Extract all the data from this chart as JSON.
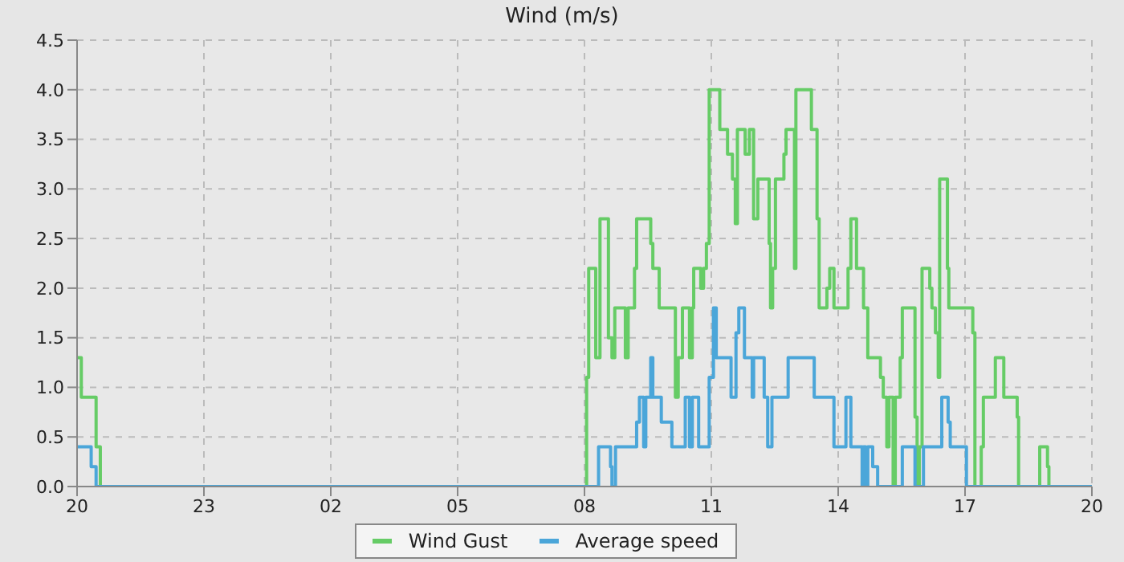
{
  "chart_data": {
    "type": "step",
    "title": "Wind (m/s)",
    "xlim": [
      "--01-01T20:00",
      "--01-02T20:00"
    ],
    "xticks": [
      {
        "value": "--01-01T20:00",
        "label": "20"
      },
      {
        "value": "--01-01T23:00",
        "label": "23"
      },
      {
        "value": "--01-02T02:00",
        "label": "02"
      },
      {
        "value": "--01-02T05:00",
        "label": "05"
      },
      {
        "value": "--01-02T08:00",
        "label": "08"
      },
      {
        "value": "--01-02T11:00",
        "label": "11"
      },
      {
        "value": "--01-02T14:00",
        "label": "14"
      },
      {
        "value": "--01-02T17:00",
        "label": "17"
      },
      {
        "value": "--01-02T20:00",
        "label": "20"
      }
    ],
    "ylim": [
      0,
      4.5
    ],
    "yticks": [
      {
        "value": 0,
        "label": "0.0"
      },
      {
        "value": 0.5,
        "label": "0.5"
      },
      {
        "value": 1,
        "label": "1.0"
      },
      {
        "value": 1.5,
        "label": "1.5"
      },
      {
        "value": 2,
        "label": "2.0"
      },
      {
        "value": 2.5,
        "label": "2.5"
      },
      {
        "value": 3,
        "label": "3.0"
      },
      {
        "value": 3.5,
        "label": "3.5"
      },
      {
        "value": 4,
        "label": "4.0"
      },
      {
        "value": 4.5,
        "label": "4.5"
      }
    ],
    "grid": true,
    "legend": "bottom",
    "marker": "none",
    "line_style": "solid",
    "series": [
      {
        "name": "Wind Gust",
        "color": "#66cc66",
        "x": [
          "--01-01T20:00",
          "--01-01T20:06",
          "--01-01T20:27",
          "--01-01T20:33",
          "--01-02T08:03",
          "--01-02T08:06",
          "--01-02T08:16",
          "--01-02T08:22",
          "--01-02T08:34",
          "--01-02T08:39",
          "--01-02T08:43",
          "--01-02T08:58",
          "--01-02T09:02",
          "--01-02T09:11",
          "--01-02T09:14",
          "--01-02T09:34",
          "--01-02T09:37",
          "--01-02T09:46",
          "--01-02T10:09",
          "--01-02T10:13",
          "--01-02T10:19",
          "--01-02T10:29",
          "--01-02T10:33",
          "--01-02T10:35",
          "--01-02T10:45",
          "--01-02T10:49",
          "--01-02T10:53",
          "--01-02T10:57",
          "--01-02T11:12",
          "--01-02T11:23",
          "--01-02T11:30",
          "--01-02T11:34",
          "--01-02T11:37",
          "--01-02T11:48",
          "--01-02T11:54",
          "--01-02T12:00",
          "--01-02T12:06",
          "--01-02T12:22",
          "--01-02T12:24",
          "--01-02T12:27",
          "--01-02T12:31",
          "--01-02T12:43",
          "--01-02T12:46",
          "--01-02T12:58",
          "--01-02T13:00",
          "--01-02T13:02",
          "--01-02T13:22",
          "--01-02T13:30",
          "--01-02T13:33",
          "--01-02T13:44",
          "--01-02T13:48",
          "--01-02T13:54",
          "--01-02T13:57",
          "--01-02T14:14",
          "--01-02T14:18",
          "--01-02T14:26",
          "--01-02T14:30",
          "--01-02T14:36",
          "--01-02T14:42",
          "--01-02T15:00",
          "--01-02T15:04",
          "--01-02T15:09",
          "--01-02T15:12",
          "--01-02T15:18",
          "--01-02T15:21",
          "--01-02T15:28",
          "--01-02T15:31",
          "--01-02T15:49",
          "--01-02T15:52",
          "--01-02T15:55",
          "--01-02T15:59",
          "--01-02T16:10",
          "--01-02T16:13",
          "--01-02T16:18",
          "--01-02T16:22",
          "--01-02T16:24",
          "--01-02T16:35",
          "--01-02T16:37",
          "--01-02T17:11",
          "--01-02T17:14",
          "--01-02T17:23",
          "--01-02T17:26",
          "--01-02T17:43",
          "--01-02T17:55",
          "--01-02T18:14",
          "--01-02T18:16",
          "--01-02T18:46",
          "--01-02T18:57",
          "--01-02T18:59",
          "--01-02T20:00"
        ],
        "values": [
          1.3,
          0.9,
          0.4,
          0,
          1.1,
          2.2,
          1.3,
          2.7,
          1.5,
          1.3,
          1.8,
          1.3,
          1.8,
          2.2,
          2.7,
          2.45,
          2.2,
          1.8,
          0.9,
          1.3,
          1.8,
          1.3,
          1.8,
          2.2,
          2.0,
          2.2,
          2.45,
          4.0,
          3.6,
          3.35,
          3.1,
          2.65,
          3.6,
          3.35,
          3.6,
          2.7,
          3.1,
          2.45,
          1.8,
          2.2,
          3.1,
          3.35,
          3.6,
          2.2,
          4.0,
          4.0,
          3.6,
          2.7,
          1.8,
          2.0,
          2.2,
          1.8,
          1.8,
          2.2,
          2.7,
          2.2,
          2.2,
          1.8,
          1.3,
          1.1,
          0.9,
          0.4,
          0.9,
          0,
          0.9,
          1.3,
          1.8,
          0.7,
          0,
          0.4,
          2.2,
          2.0,
          1.8,
          1.55,
          1.1,
          3.1,
          2.2,
          1.8,
          1.55,
          0,
          0.4,
          0.9,
          1.3,
          0.9,
          0.7,
          0,
          0.4,
          0.2,
          0,
          0
        ]
      },
      {
        "name": "Average speed",
        "color": "#4ba6d9",
        "x": [
          "--01-01T20:00",
          "--01-01T20:20",
          "--01-01T20:27",
          "--01-02T08:20",
          "--01-02T08:37",
          "--01-02T08:39",
          "--01-02T08:44",
          "--01-02T09:14",
          "--01-02T09:18",
          "--01-02T09:24",
          "--01-02T09:27",
          "--01-02T09:34",
          "--01-02T09:37",
          "--01-02T09:49",
          "--01-02T10:04",
          "--01-02T10:23",
          "--01-02T10:29",
          "--01-02T10:33",
          "--01-02T10:42",
          "--01-02T10:57",
          "--01-02T11:03",
          "--01-02T11:07",
          "--01-02T11:28",
          "--01-02T11:35",
          "--01-02T11:39",
          "--01-02T11:47",
          "--01-02T11:58",
          "--01-02T12:00",
          "--01-02T12:15",
          "--01-02T12:20",
          "--01-02T12:26",
          "--01-02T12:49",
          "--01-02T13:26",
          "--01-02T13:54",
          "--01-02T14:11",
          "--01-02T14:18",
          "--01-02T14:34",
          "--01-02T14:36",
          "--01-02T14:39",
          "--01-02T14:42",
          "--01-02T14:49",
          "--01-02T14:56",
          "--01-02T15:31",
          "--01-02T15:49",
          "--01-02T16:01",
          "--01-02T16:27",
          "--01-02T16:36",
          "--01-02T16:39",
          "--01-02T17:02",
          "--01-02T20:00"
        ],
        "values": [
          0.4,
          0.2,
          0,
          0.4,
          0.2,
          0,
          0.4,
          0.65,
          0.9,
          0.4,
          0.9,
          1.3,
          0.9,
          0.65,
          0.4,
          0.9,
          0.4,
          0.9,
          0.4,
          1.1,
          1.8,
          1.3,
          0.9,
          1.55,
          1.8,
          1.3,
          0.9,
          1.3,
          0.9,
          0.4,
          0.9,
          1.3,
          0.9,
          0.4,
          0.9,
          0.4,
          0,
          0.4,
          0,
          0.4,
          0.2,
          0,
          0.4,
          0,
          0.4,
          0.9,
          0.65,
          0.4,
          0,
          0
        ]
      }
    ]
  }
}
